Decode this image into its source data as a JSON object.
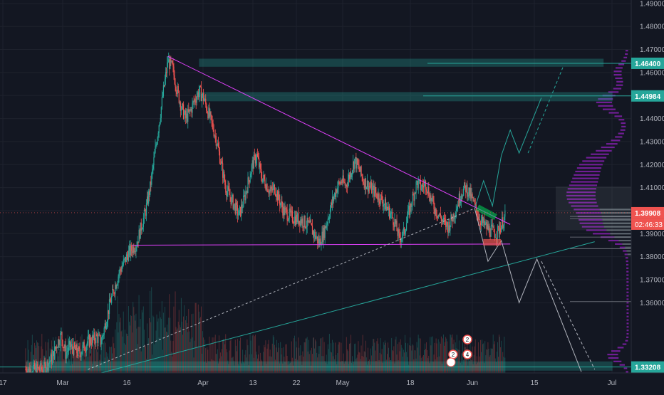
{
  "chart_data": {
    "type": "candlestick",
    "symbol_title": "",
    "y_axis": {
      "ticks": [
        1.36,
        1.37,
        1.38,
        1.39,
        1.4,
        1.41,
        1.42,
        1.43,
        1.44,
        1.45,
        1.46,
        1.47,
        1.48,
        1.49
      ],
      "tick_labels": [
        "1.36000",
        "1.37000",
        "1.38000",
        "1.39000",
        "1.40000",
        "1.41000",
        "1.42000",
        "1.43000",
        "1.44000",
        "1.45000",
        "1.46000",
        "1.47000",
        "1.48000",
        "1.49000"
      ],
      "range": [
        1.3295,
        1.4915
      ]
    },
    "x_axis": {
      "labels": [
        "17",
        "Mar",
        "16",
        "Apr",
        "13",
        "22",
        "May",
        "18",
        "Jun",
        "15",
        "Jul"
      ]
    },
    "price_labels": [
      {
        "value": 1.464,
        "text": "1.46400",
        "color": "#26a69a"
      },
      {
        "value": 1.44984,
        "text": "1.44984",
        "color": "#26a69a"
      },
      {
        "value": 1.39908,
        "text": "1.39908",
        "color": "#ef5350"
      },
      {
        "value": 1.33208,
        "text": "1.33208",
        "color": "#26a69a"
      }
    ],
    "countdown": "02:46:33",
    "current_price": 1.39908,
    "close_path": [
      [
        0,
        1.331
      ],
      [
        4,
        1.331
      ],
      [
        6,
        1.336
      ],
      [
        7,
        1.342
      ],
      [
        8,
        1.346
      ],
      [
        9,
        1.338
      ],
      [
        10,
        1.341
      ],
      [
        12,
        1.338
      ],
      [
        14,
        1.343
      ],
      [
        16,
        1.345
      ],
      [
        17,
        1.343
      ],
      [
        19,
        1.36
      ],
      [
        21,
        1.373
      ],
      [
        23,
        1.381
      ],
      [
        25,
        1.386
      ],
      [
        27,
        1.4
      ],
      [
        28,
        1.41
      ],
      [
        29,
        1.424
      ],
      [
        30,
        1.438
      ],
      [
        31,
        1.452
      ],
      [
        32,
        1.465
      ],
      [
        33,
        1.462
      ],
      [
        34,
        1.453
      ],
      [
        35,
        1.445
      ],
      [
        36,
        1.44
      ],
      [
        37,
        1.443
      ],
      [
        38,
        1.448
      ],
      [
        39,
        1.452
      ],
      [
        40,
        1.449
      ],
      [
        41,
        1.443
      ],
      [
        42,
        1.437
      ],
      [
        43,
        1.43
      ],
      [
        45,
        1.41
      ],
      [
        47,
        1.402
      ],
      [
        48,
        1.398
      ],
      [
        49,
        1.404
      ],
      [
        50,
        1.412
      ],
      [
        51,
        1.42
      ],
      [
        52,
        1.424
      ],
      [
        53,
        1.415
      ],
      [
        54,
        1.412
      ],
      [
        55,
        1.408
      ],
      [
        56,
        1.41
      ],
      [
        58,
        1.4
      ],
      [
        60,
        1.397
      ],
      [
        62,
        1.396
      ],
      [
        64,
        1.393
      ],
      [
        66,
        1.386
      ],
      [
        67,
        1.39
      ],
      [
        68,
        1.397
      ],
      [
        69,
        1.404
      ],
      [
        70,
        1.41
      ],
      [
        71,
        1.413
      ],
      [
        72,
        1.411
      ],
      [
        73,
        1.416
      ],
      [
        74,
        1.422
      ],
      [
        75,
        1.418
      ],
      [
        76,
        1.413
      ],
      [
        77,
        1.411
      ],
      [
        78,
        1.409
      ],
      [
        80,
        1.405
      ],
      [
        82,
        1.399
      ],
      [
        83,
        1.395
      ],
      [
        84,
        1.388
      ],
      [
        85,
        1.39
      ],
      [
        86,
        1.398
      ],
      [
        87,
        1.405
      ],
      [
        88,
        1.412
      ],
      [
        89,
        1.41
      ],
      [
        90,
        1.412
      ],
      [
        91,
        1.406
      ],
      [
        92,
        1.401
      ],
      [
        94,
        1.395
      ],
      [
        95,
        1.393
      ],
      [
        96,
        1.397
      ],
      [
        97,
        1.402
      ],
      [
        98,
        1.408
      ],
      [
        99,
        1.41
      ],
      [
        100,
        1.407
      ],
      [
        101,
        1.402
      ],
      [
        102,
        1.397
      ],
      [
        103,
        1.394
      ],
      [
        104,
        1.392
      ],
      [
        106,
        1.39
      ],
      [
        107,
        1.394
      ],
      [
        108,
        1.398
      ]
    ],
    "annotations": {
      "resistance_line": {
        "from": [
          32,
          1.467
        ],
        "to": [
          109,
          1.394
        ],
        "color": "#e040fb"
      },
      "support_line": {
        "from": [
          24,
          1.385
        ],
        "to": [
          109,
          1.3855
        ],
        "color": "#e040fb"
      },
      "dashed_trend_line": {
        "from": [
          14,
          1.331
        ],
        "to": [
          101,
          1.401
        ],
        "color": "#d1d4dc"
      },
      "teal_trend_line": {
        "from": [
          15,
          1.3285
        ],
        "to": [
          128,
          1.3865
        ],
        "color": "#26a69a"
      },
      "bullish_projection": [
        [
          101,
          1.401
        ],
        [
          103,
          1.413
        ],
        [
          105,
          1.402
        ],
        [
          107,
          1.424
        ],
        [
          109,
          1.435
        ],
        [
          111,
          1.425
        ],
        [
          116,
          1.449
        ]
      ],
      "bullish_dashed": [
        [
          113,
          1.425
        ],
        [
          121,
          1.463
        ]
      ],
      "bearish_projection": [
        [
          101,
          1.401
        ],
        [
          104,
          1.378
        ],
        [
          107,
          1.387
        ],
        [
          111,
          1.36
        ],
        [
          115,
          1.379
        ],
        [
          125,
          1.33
        ]
      ],
      "bearish_dashed": [
        [
          116,
          1.378
        ],
        [
          128,
          1.331
        ]
      ],
      "zones": [
        {
          "from_x": 39,
          "to_x": 130,
          "low": 1.4625,
          "high": 1.466,
          "color": "#26a69a"
        },
        {
          "from_x": 39,
          "to_x": 132,
          "low": 1.4475,
          "high": 1.4515,
          "color": "#26a69a"
        },
        {
          "from_x": 0,
          "to_x": 132,
          "low": 1.3305,
          "high": 1.3345,
          "color": "#26a69a"
        }
      ]
    },
    "legend": {
      "events": [
        "2",
        "4",
        "2"
      ]
    }
  }
}
